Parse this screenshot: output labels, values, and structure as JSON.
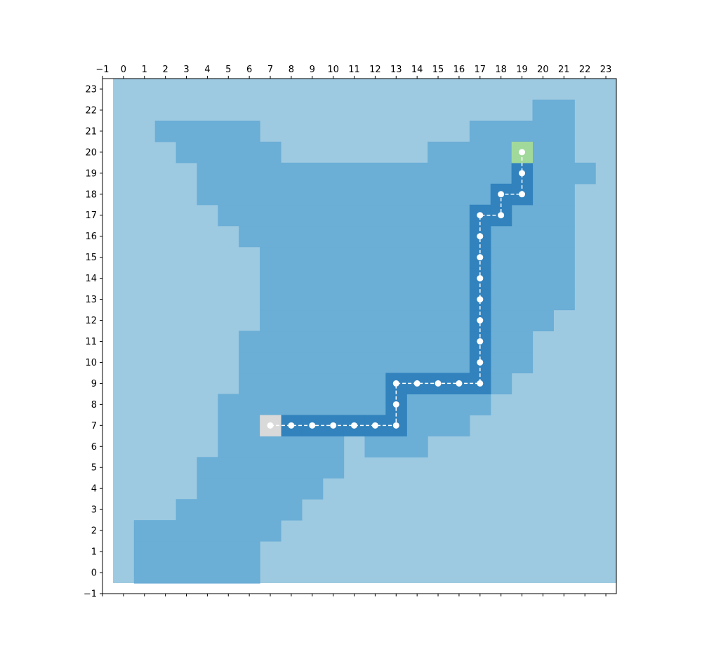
{
  "chart_data": {
    "type": "heatmap",
    "title": "",
    "xlabel": "",
    "ylabel": "",
    "xlim": [
      -1,
      23.5
    ],
    "ylim": [
      -1,
      23.5
    ],
    "x_ticks": [
      -1,
      0,
      1,
      2,
      3,
      4,
      5,
      6,
      7,
      8,
      9,
      10,
      11,
      12,
      13,
      14,
      15,
      16,
      17,
      18,
      19,
      20,
      21,
      22,
      23
    ],
    "y_ticks": [
      -1,
      0,
      1,
      2,
      3,
      4,
      5,
      6,
      7,
      8,
      9,
      10,
      11,
      12,
      13,
      14,
      15,
      16,
      17,
      18,
      19,
      20,
      21,
      22,
      23
    ],
    "x_tick_labels": [
      "−1",
      "0",
      "1",
      "2",
      "3",
      "4",
      "5",
      "6",
      "7",
      "8",
      "9",
      "10",
      "11",
      "12",
      "13",
      "14",
      "15",
      "16",
      "17",
      "18",
      "19",
      "20",
      "21",
      "22",
      "23"
    ],
    "y_tick_labels": [
      "−1",
      "0",
      "1",
      "2",
      "3",
      "4",
      "5",
      "6",
      "7",
      "8",
      "9",
      "10",
      "11",
      "12",
      "13",
      "14",
      "15",
      "16",
      "17",
      "18",
      "19",
      "20",
      "21",
      "22",
      "23"
    ],
    "x_axis_position": "top",
    "grid": false,
    "background_color": "#9ecae1",
    "region_color": "#6baed6",
    "path_color": "#3182bd",
    "start_color": "#d9d9d9",
    "goal_color": "#a1d99b",
    "marker_color": "#ffffff",
    "region_runs": [
      {
        "y": 0,
        "x0": 1,
        "x1": 6
      },
      {
        "y": 1,
        "x0": 1,
        "x1": 6
      },
      {
        "y": 2,
        "x0": 1,
        "x1": 7
      },
      {
        "y": 3,
        "x0": 3,
        "x1": 8
      },
      {
        "y": 4,
        "x0": 4,
        "x1": 9
      },
      {
        "y": 5,
        "x0": 4,
        "x1": 10
      },
      {
        "y": 6,
        "x0": 5,
        "x1": 10
      },
      {
        "y": 6,
        "x0": 12,
        "x1": 14
      },
      {
        "y": 7,
        "x0": 5,
        "x1": 16
      },
      {
        "y": 8,
        "x0": 5,
        "x1": 17
      },
      {
        "y": 9,
        "x0": 6,
        "x1": 18
      },
      {
        "y": 10,
        "x0": 6,
        "x1": 19
      },
      {
        "y": 11,
        "x0": 6,
        "x1": 19
      },
      {
        "y": 12,
        "x0": 7,
        "x1": 20
      },
      {
        "y": 13,
        "x0": 7,
        "x1": 21
      },
      {
        "y": 14,
        "x0": 7,
        "x1": 21
      },
      {
        "y": 15,
        "x0": 7,
        "x1": 21
      },
      {
        "y": 16,
        "x0": 6,
        "x1": 21
      },
      {
        "y": 17,
        "x0": 5,
        "x1": 21
      },
      {
        "y": 18,
        "x0": 4,
        "x1": 21
      },
      {
        "y": 19,
        "x0": 4,
        "x1": 22
      },
      {
        "y": 20,
        "x0": 3,
        "x1": 7
      },
      {
        "y": 20,
        "x0": 15,
        "x1": 21
      },
      {
        "y": 21,
        "x0": 2,
        "x1": 6
      },
      {
        "y": 21,
        "x0": 17,
        "x1": 21
      },
      {
        "y": 22,
        "x0": 20,
        "x1": 21
      }
    ],
    "start": [
      7,
      7
    ],
    "goal": [
      19,
      20
    ],
    "path": [
      [
        7,
        7
      ],
      [
        8,
        7
      ],
      [
        9,
        7
      ],
      [
        10,
        7
      ],
      [
        11,
        7
      ],
      [
        12,
        7
      ],
      [
        13,
        7
      ],
      [
        13,
        8
      ],
      [
        13,
        9
      ],
      [
        14,
        9
      ],
      [
        15,
        9
      ],
      [
        16,
        9
      ],
      [
        17,
        9
      ],
      [
        17,
        10
      ],
      [
        17,
        11
      ],
      [
        17,
        12
      ],
      [
        17,
        13
      ],
      [
        17,
        14
      ],
      [
        17,
        15
      ],
      [
        17,
        16
      ],
      [
        17,
        17
      ],
      [
        18,
        17
      ],
      [
        18,
        18
      ],
      [
        19,
        18
      ],
      [
        19,
        19
      ],
      [
        19,
        20
      ]
    ]
  }
}
